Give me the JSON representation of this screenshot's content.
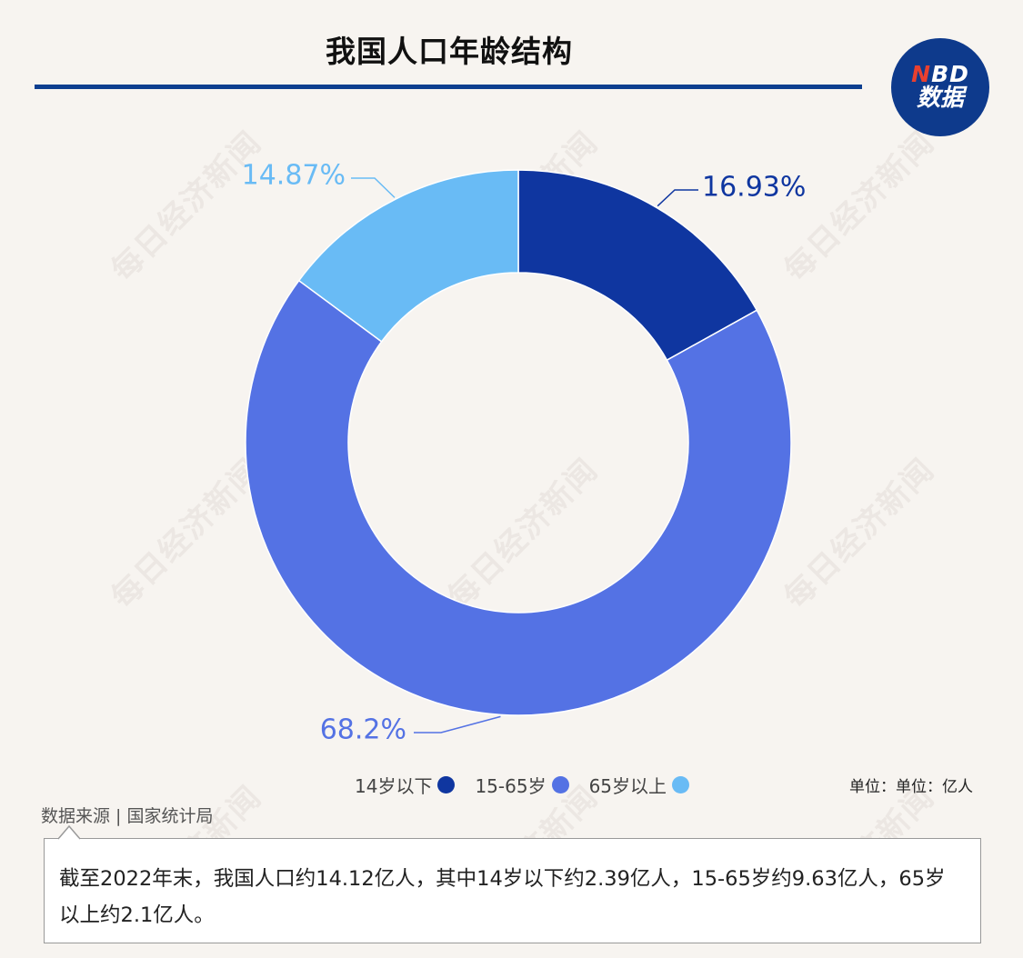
{
  "title": "我国人口年龄结构",
  "logo": {
    "line1_n": "N",
    "line1_rest": "BD",
    "line2": "数据"
  },
  "watermark": "每日经济新闻",
  "unit": "单位：单位：亿人",
  "source": "数据来源 | 国家统计局",
  "note": "截至2022年末，我国人口约14.12亿人，其中14岁以下约2.39亿人，15-65岁约9.63亿人，65岁以上约2.1亿人。",
  "colors": {
    "accent": "#0d3f8f",
    "logo_bg": "#0e3a8c",
    "logo_n": "#e8402f"
  },
  "chart_data": {
    "type": "pie",
    "donut": true,
    "labels": [
      "14岁以下",
      "15-65岁",
      "65岁以上"
    ],
    "values": [
      16.93,
      68.2,
      14.87
    ],
    "value_labels": [
      "16.93%",
      "68.2%",
      "14.87%"
    ],
    "colors": [
      "#0f36a0",
      "#5472e4",
      "#69bbf5"
    ],
    "legend": "bottom-center"
  }
}
